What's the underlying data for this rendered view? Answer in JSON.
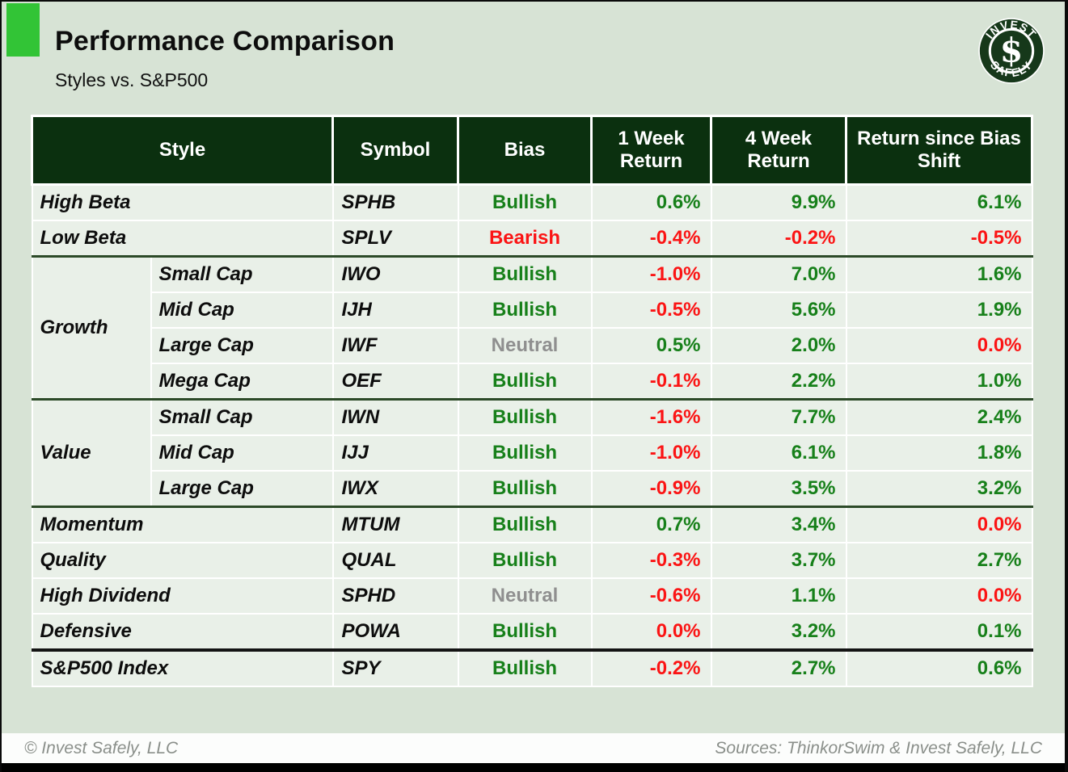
{
  "page": {
    "title": "Performance Comparison",
    "subtitle": "Styles vs. S&P500",
    "footer_left": "© Invest Safely, LLC",
    "footer_right": "Sources: ThinkorSwim & Invest Safely, LLC"
  },
  "logo": {
    "top_text": "INVEST",
    "bottom_text": "SAFELY",
    "monogram": "$"
  },
  "colors": {
    "accent_green": "#32C436",
    "page_bg": "#D7E3D5",
    "header_bg": "#0B300F",
    "row_bg": "#E9F0E8",
    "positive": "#17801A",
    "negative": "#FB1414",
    "neutral": "#8F8F8F",
    "separator_green": "#2C4A28",
    "separator_black": "#141414",
    "logo_green": "#16381A"
  },
  "table": {
    "headers": [
      "Style",
      "Symbol",
      "Bias",
      "1 Week Return",
      "4 Week Return",
      "Return since Bias Shift"
    ],
    "rows": [
      {
        "style": "High Beta",
        "span": 2,
        "symbol": "SPHB",
        "bias": "Bullish",
        "returns": [
          "0.6%",
          "9.9%",
          "6.1%"
        ]
      },
      {
        "style": "Low Beta",
        "span": 2,
        "symbol": "SPLV",
        "bias": "Bearish",
        "returns": [
          "-0.4%",
          "-0.2%",
          "-0.5%"
        ],
        "separator": "green"
      },
      {
        "group": "Growth",
        "group_rows": 4,
        "style": "Small Cap",
        "symbol": "IWO",
        "bias": "Bullish",
        "returns": [
          "-1.0%",
          "7.0%",
          "1.6%"
        ]
      },
      {
        "style": "Mid Cap",
        "symbol": "IJH",
        "bias": "Bullish",
        "returns": [
          "-0.5%",
          "5.6%",
          "1.9%"
        ]
      },
      {
        "style": "Large Cap",
        "symbol": "IWF",
        "bias": "Neutral",
        "returns": [
          "0.5%",
          "2.0%",
          "0.0%"
        ]
      },
      {
        "style": "Mega Cap",
        "symbol": "OEF",
        "bias": "Bullish",
        "returns": [
          "-0.1%",
          "2.2%",
          "1.0%"
        ],
        "separator": "green"
      },
      {
        "group": "Value",
        "group_rows": 3,
        "style": "Small Cap",
        "symbol": "IWN",
        "bias": "Bullish",
        "returns": [
          "-1.6%",
          "7.7%",
          "2.4%"
        ]
      },
      {
        "style": "Mid Cap",
        "symbol": "IJJ",
        "bias": "Bullish",
        "returns": [
          "-1.0%",
          "6.1%",
          "1.8%"
        ]
      },
      {
        "style": "Large Cap",
        "symbol": "IWX",
        "bias": "Bullish",
        "returns": [
          "-0.9%",
          "3.5%",
          "3.2%"
        ],
        "separator": "green"
      },
      {
        "style": "Momentum",
        "span": 2,
        "symbol": "MTUM",
        "bias": "Bullish",
        "returns": [
          "0.7%",
          "3.4%",
          "0.0%"
        ]
      },
      {
        "style": "Quality",
        "span": 2,
        "symbol": "QUAL",
        "bias": "Bullish",
        "returns": [
          "-0.3%",
          "3.7%",
          "2.7%"
        ]
      },
      {
        "style": "High Dividend",
        "span": 2,
        "symbol": "SPHD",
        "bias": "Neutral",
        "returns": [
          "-0.6%",
          "1.1%",
          "0.0%"
        ]
      },
      {
        "style": "Defensive",
        "span": 2,
        "symbol": "POWA",
        "bias": "Bullish",
        "returns": [
          "0.0%",
          "3.2%",
          "0.1%"
        ],
        "separator": "black"
      },
      {
        "style": "S&P500 Index",
        "span": 2,
        "symbol": "SPY",
        "bias": "Bullish",
        "returns": [
          "-0.2%",
          "2.7%",
          "0.6%"
        ]
      }
    ]
  },
  "chart_data": {
    "type": "table",
    "title": "Performance Comparison",
    "subtitle": "Styles vs. S&P500",
    "columns": [
      "Style",
      "Symbol",
      "Bias",
      "1 Week Return",
      "4 Week Return",
      "Return since Bias Shift"
    ],
    "rows": [
      [
        "High Beta",
        "SPHB",
        "Bullish",
        0.6,
        9.9,
        6.1
      ],
      [
        "Low Beta",
        "SPLV",
        "Bearish",
        -0.4,
        -0.2,
        -0.5
      ],
      [
        "Growth - Small Cap",
        "IWO",
        "Bullish",
        -1.0,
        7.0,
        1.6
      ],
      [
        "Growth - Mid Cap",
        "IJH",
        "Bullish",
        -0.5,
        5.6,
        1.9
      ],
      [
        "Growth - Large Cap",
        "IWF",
        "Neutral",
        0.5,
        2.0,
        0.0
      ],
      [
        "Growth - Mega Cap",
        "OEF",
        "Bullish",
        -0.1,
        2.2,
        1.0
      ],
      [
        "Value - Small Cap",
        "IWN",
        "Bullish",
        -1.6,
        7.7,
        2.4
      ],
      [
        "Value - Mid Cap",
        "IJJ",
        "Bullish",
        -1.0,
        6.1,
        1.8
      ],
      [
        "Value - Large Cap",
        "IWX",
        "Bullish",
        -0.9,
        3.5,
        3.2
      ],
      [
        "Momentum",
        "MTUM",
        "Bullish",
        0.7,
        3.4,
        0.0
      ],
      [
        "Quality",
        "QUAL",
        "Bullish",
        -0.3,
        3.7,
        2.7
      ],
      [
        "High Dividend",
        "SPHD",
        "Neutral",
        -0.6,
        1.1,
        0.0
      ],
      [
        "Defensive",
        "POWA",
        "Bullish",
        0.0,
        3.2,
        0.1
      ],
      [
        "S&P500 Index",
        "SPY",
        "Bullish",
        -0.2,
        2.7,
        0.6
      ]
    ],
    "units": "percent",
    "value_color_rule": "value > 0 green, value <= 0 red; Bullish green, Bearish red, Neutral gray"
  }
}
